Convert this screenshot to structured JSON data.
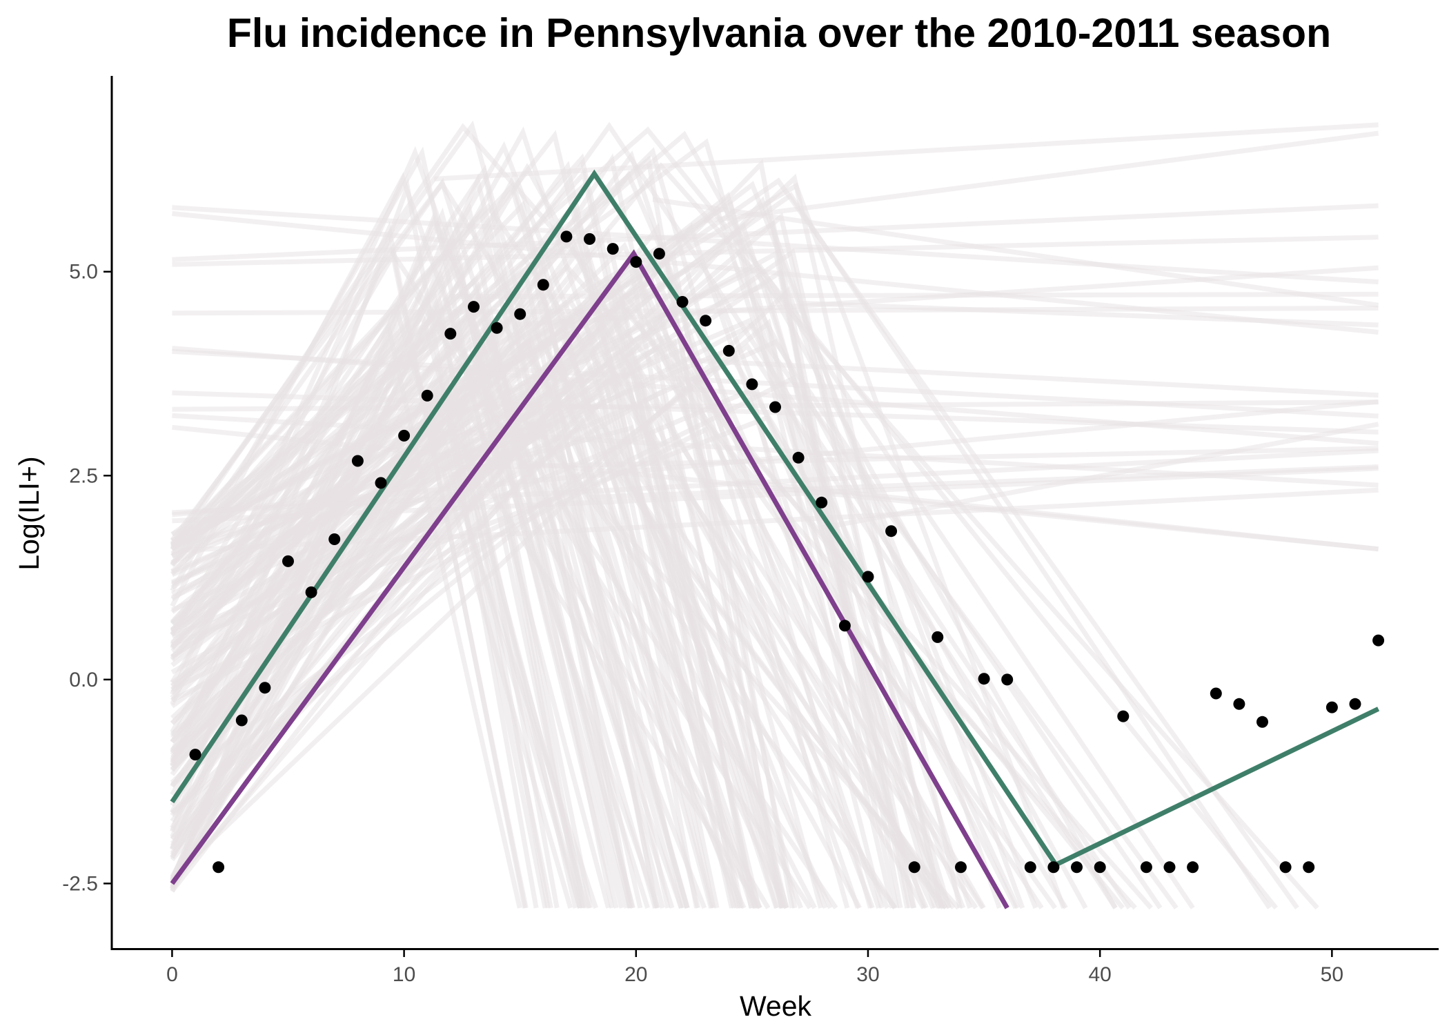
{
  "chart_data": {
    "type": "line",
    "title": "Flu incidence in Pennsylvania over the 2010-2011 season",
    "xlabel": "Week",
    "ylabel": "Log(ILI+)",
    "xlim": [
      -2.6,
      54.6
    ],
    "ylim": [
      -3.3,
      7.4
    ],
    "x_ticks": [
      0,
      10,
      20,
      30,
      40,
      50
    ],
    "x_tick_labels": [
      "0",
      "10",
      "20",
      "30",
      "40",
      "50"
    ],
    "y_ticks": [
      -2.5,
      0.0,
      2.5,
      5.0
    ],
    "y_tick_labels": [
      "-2.5",
      "0.0",
      "2.5",
      "5.0"
    ],
    "grid": false,
    "legend": "none",
    "colors": {
      "observed": "#000000",
      "fit_green": "#3f7f6a",
      "fit_purple": "#7e3f8c",
      "posterior_samples": "#e7e2e4"
    },
    "series": [
      {
        "kind": "points",
        "x": [
          1,
          2,
          3,
          4,
          5,
          6,
          7,
          8,
          9,
          10,
          11,
          12,
          13,
          14,
          15,
          16,
          17,
          18,
          19,
          20,
          21,
          22,
          23,
          24,
          25,
          26,
          27,
          28,
          29,
          30,
          31,
          32,
          33,
          34,
          35,
          36,
          37,
          38,
          39,
          40,
          41,
          42,
          43,
          44,
          45,
          46,
          47,
          48,
          49,
          50,
          51,
          52
        ],
        "y": [
          -0.92,
          -2.3,
          -0.5,
          -0.1,
          1.45,
          1.07,
          1.72,
          2.68,
          2.41,
          2.99,
          3.48,
          4.24,
          4.57,
          4.31,
          4.48,
          4.84,
          5.43,
          5.4,
          5.28,
          5.12,
          5.22,
          4.63,
          4.4,
          4.03,
          3.62,
          3.34,
          2.72,
          2.17,
          0.66,
          1.26,
          1.82,
          -2.3,
          0.52,
          -2.3,
          0.01,
          0.0,
          -2.3,
          -2.3,
          -2.3,
          -2.3,
          -0.45,
          -2.3,
          -2.3,
          -2.3,
          -0.17,
          -0.3,
          -0.52,
          -2.3,
          -2.3,
          -0.34,
          -0.3,
          0.48
        ]
      },
      {
        "kind": "line",
        "x": [
          0,
          18.2,
          38.1,
          52
        ],
        "y": [
          -1.5,
          6.2,
          -2.27,
          -0.36
        ]
      },
      {
        "kind": "line",
        "x": [
          0,
          19.9,
          36
        ],
        "y": [
          -2.5,
          5.22,
          -2.8
        ]
      },
      {
        "kind": "samples",
        "count": 150,
        "x_range": [
          0,
          52
        ],
        "y_floor": -2.8,
        "y_ceiling": 6.9
      }
    ]
  }
}
